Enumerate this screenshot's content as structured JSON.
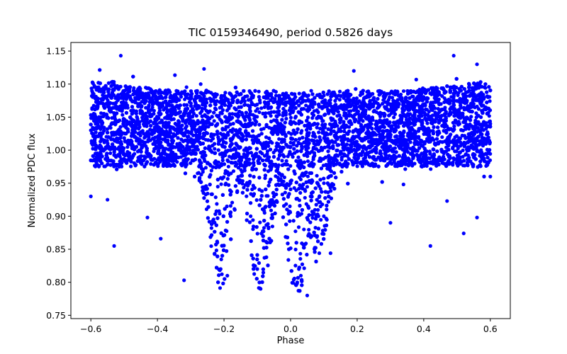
{
  "chart_data": {
    "type": "scatter",
    "title": "TIC 0159346490, period 0.5826 days",
    "xlabel": "Phase",
    "ylabel": "Normalized PDC flux",
    "xlim": [
      -0.66,
      0.66
    ],
    "ylim": [
      0.745,
      1.163
    ],
    "x_ticks": [
      {
        "value": -0.6,
        "label": "−0.6"
      },
      {
        "value": -0.4,
        "label": "−0.4"
      },
      {
        "value": -0.2,
        "label": "−0.2"
      },
      {
        "value": 0.0,
        "label": "0.0"
      },
      {
        "value": 0.2,
        "label": "0.2"
      },
      {
        "value": 0.4,
        "label": "0.4"
      },
      {
        "value": 0.6,
        "label": "0.6"
      }
    ],
    "y_ticks": [
      {
        "value": 0.75,
        "label": "0.75"
      },
      {
        "value": 0.8,
        "label": "0.80"
      },
      {
        "value": 0.85,
        "label": "0.85"
      },
      {
        "value": 0.9,
        "label": "0.90"
      },
      {
        "value": 0.95,
        "label": "0.95"
      },
      {
        "value": 1.0,
        "label": "1.00"
      },
      {
        "value": 1.05,
        "label": "1.05"
      },
      {
        "value": 1.1,
        "label": "1.10"
      },
      {
        "value": 1.15,
        "label": "1.15"
      }
    ],
    "grid": false,
    "marker_color": "#0000ff",
    "series": [
      {
        "name": "PDC flux",
        "phase_range": [
          -0.6,
          0.6
        ],
        "baseline": 1.02,
        "scatter_band": [
          0.975,
          1.09
        ],
        "dips": [
          {
            "center": -0.21,
            "bottom": 0.79
          },
          {
            "center": -0.09,
            "bottom": 0.775
          },
          {
            "center": 0.02,
            "bottom": 0.77
          },
          {
            "center": 0.08,
            "bottom": 0.84
          }
        ],
        "points": [
          [
            -0.6,
            1.03
          ],
          [
            -0.55,
            1.05
          ],
          [
            -0.5,
            1.07
          ],
          [
            -0.45,
            1.08
          ],
          [
            -0.4,
            1.07
          ],
          [
            -0.35,
            1.06
          ],
          [
            -0.3,
            1.08
          ],
          [
            -0.27,
            1.1
          ],
          [
            -0.25,
            0.98
          ],
          [
            -0.22,
            0.86
          ],
          [
            -0.21,
            0.82
          ],
          [
            -0.18,
            0.9
          ],
          [
            -0.15,
            0.98
          ],
          [
            -0.12,
            0.9
          ],
          [
            -0.1,
            0.82
          ],
          [
            -0.09,
            0.79
          ],
          [
            -0.07,
            0.86
          ],
          [
            -0.05,
            0.99
          ],
          [
            -0.03,
            1.04
          ],
          [
            0.0,
            0.95
          ],
          [
            0.02,
            0.8
          ],
          [
            0.04,
            0.88
          ],
          [
            0.06,
            0.93
          ],
          [
            0.08,
            0.87
          ],
          [
            0.1,
            0.95
          ],
          [
            0.15,
            1.02
          ],
          [
            0.2,
            1.03
          ],
          [
            0.3,
            1.02
          ],
          [
            0.35,
            1.01
          ],
          [
            0.4,
            1.03
          ],
          [
            0.45,
            1.05
          ],
          [
            0.5,
            1.06
          ],
          [
            0.55,
            1.07
          ],
          [
            0.6,
            1.04
          ],
          [
            -0.51,
            1.143
          ],
          [
            0.49,
            1.143
          ],
          [
            -0.6,
            0.93
          ],
          [
            -0.55,
            0.925
          ],
          [
            -0.53,
            0.855
          ],
          [
            -0.43,
            0.898
          ],
          [
            -0.39,
            0.866
          ],
          [
            -0.32,
            0.803
          ],
          [
            -0.26,
            1.123
          ],
          [
            -0.19,
            0.81
          ],
          [
            0.05,
            0.78
          ],
          [
            0.12,
            0.844
          ],
          [
            0.19,
            1.12
          ],
          [
            0.3,
            0.89
          ],
          [
            0.42,
            0.855
          ],
          [
            0.47,
            0.923
          ],
          [
            0.52,
            0.874
          ],
          [
            0.56,
            0.898
          ],
          [
            0.6,
            0.96
          ],
          [
            0.56,
            1.13
          ]
        ]
      }
    ]
  }
}
